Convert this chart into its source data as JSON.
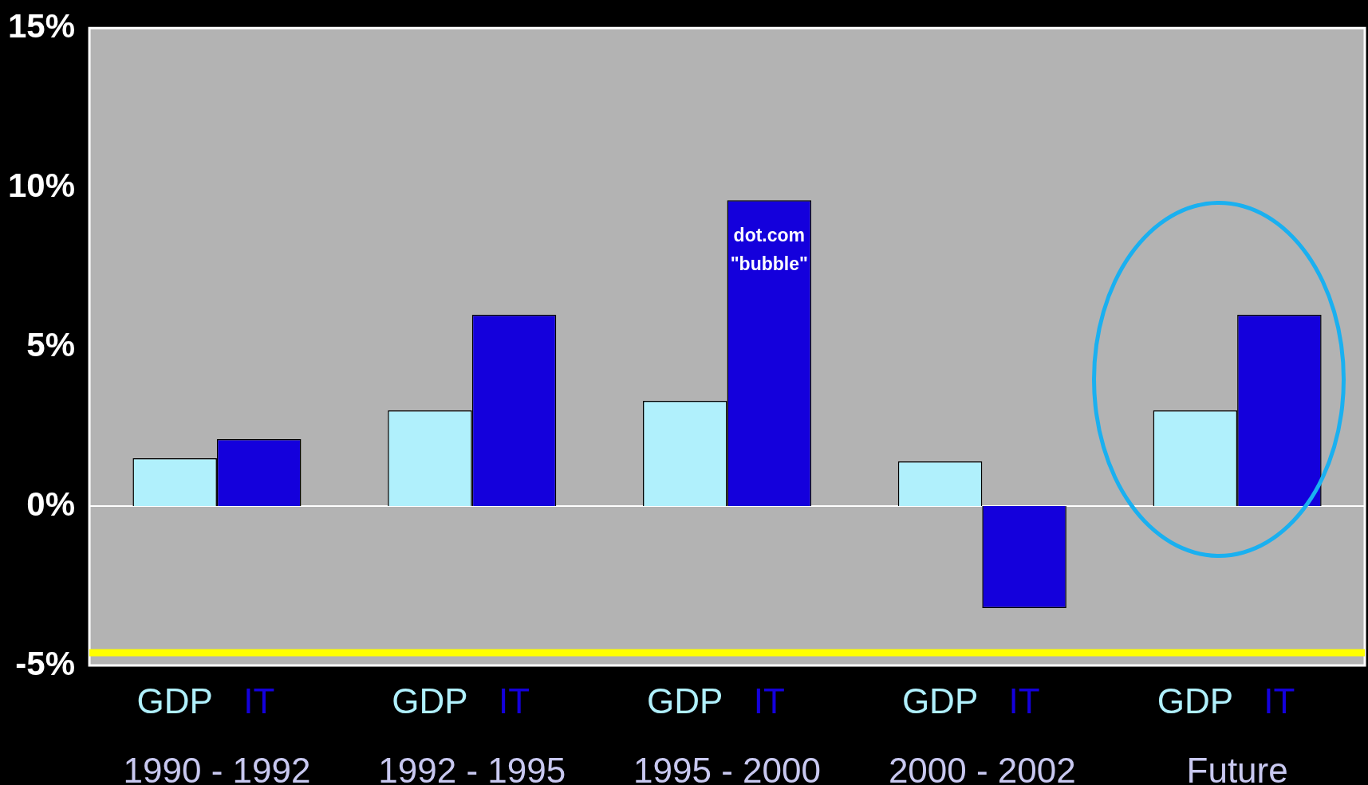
{
  "chart_data": {
    "type": "bar",
    "categories": [
      "1990 - 1992",
      "1992 - 1995",
      "1995 - 2000",
      "2000 - 2002",
      "Future"
    ],
    "series": [
      {
        "name": "GDP",
        "color": "#b0f0fc",
        "values": [
          1.5,
          3.0,
          3.3,
          1.4,
          3.0
        ]
      },
      {
        "name": "IT",
        "color": "#1400dc",
        "values": [
          2.1,
          6.0,
          9.6,
          -3.2,
          6.0
        ]
      }
    ],
    "ylim": [
      -5,
      15
    ],
    "yticks": [
      {
        "value": -5,
        "label": "-5%"
      },
      {
        "value": 0,
        "label": "0%"
      },
      {
        "value": 5,
        "label": "5%"
      },
      {
        "value": 10,
        "label": "10%"
      },
      {
        "value": 15,
        "label": "15%"
      }
    ],
    "annotations": [
      {
        "text": "dot.com\n\"bubble\"",
        "x": "1995 - 2000",
        "y": 8
      }
    ],
    "ref_lines": [
      {
        "axis": "y",
        "value": -4.6,
        "color": "#ffff00"
      }
    ]
  }
}
